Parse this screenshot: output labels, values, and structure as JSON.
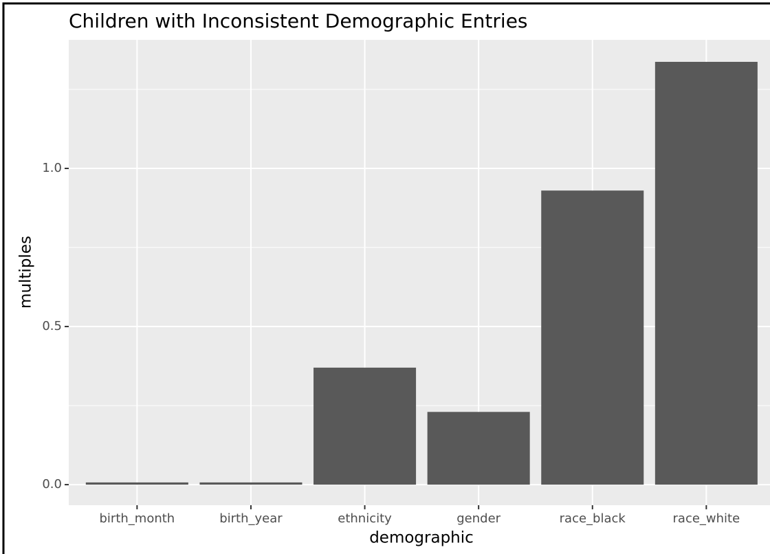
{
  "chart_data": {
    "type": "bar",
    "title": "Children with Inconsistent Demographic Entries",
    "x_label": "demographic",
    "y_label": "multiples",
    "categories": [
      "birth_month",
      "birth_year",
      "ethnicity",
      "gender",
      "race_black",
      "race_white"
    ],
    "values": [
      0.007,
      0.007,
      0.37,
      0.23,
      0.93,
      1.337
    ],
    "color": "#595959",
    "ylim": [
      -0.065,
      1.4065
    ],
    "yticks": [
      {
        "value": 0,
        "label": "0.0"
      },
      {
        "value": 0.5,
        "label": "0.5"
      },
      {
        "value": 1,
        "label": "1.0"
      }
    ],
    "minor_yticks": [
      0.25,
      0.75,
      1.25
    ],
    "grid": true
  }
}
